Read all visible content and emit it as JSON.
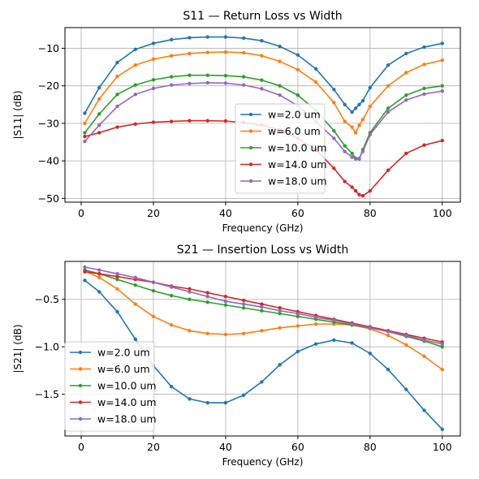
{
  "chart_data": [
    {
      "type": "line",
      "title": "S11 — Return Loss vs Width",
      "xlabel": "Frequency (GHz)",
      "ylabel": "|S11| (dB)",
      "xlim": [
        -4.5,
        105
      ],
      "ylim": [
        -51,
        -4.5
      ],
      "xticks": [
        0,
        20,
        40,
        60,
        80,
        100
      ],
      "xtick_labels": [
        "0",
        "20",
        "40",
        "60",
        "80",
        "100"
      ],
      "yticks": [
        -10,
        -20,
        -30,
        -40,
        -50
      ],
      "ytick_labels": [
        "−10",
        "−20",
        "−30",
        "−40",
        "−50"
      ],
      "grid": true,
      "legend_placement": "lower-center",
      "x": [
        1,
        5,
        10,
        15,
        20,
        25,
        30,
        35,
        40,
        45,
        50,
        55,
        60,
        65,
        70,
        73,
        75,
        76,
        77,
        78,
        80,
        85,
        90,
        95,
        100
      ],
      "series": [
        {
          "name": "w=2.0 um",
          "color": "#1f77b4",
          "values": [
            -27.3,
            -20.5,
            -13.8,
            -10.3,
            -8.7,
            -7.7,
            -7.2,
            -7.0,
            -7.0,
            -7.3,
            -8.0,
            -9.5,
            -11.8,
            -15.5,
            -21.0,
            -25.0,
            -27.0,
            -26.0,
            -25.0,
            -24.0,
            -20.5,
            -14.5,
            -11.4,
            -9.7,
            -8.7
          ]
        },
        {
          "name": "w=6.0 um",
          "color": "#ff7f0e",
          "values": [
            -30.0,
            -23.5,
            -17.5,
            -14.5,
            -12.9,
            -12.0,
            -11.4,
            -11.1,
            -11.0,
            -11.2,
            -12.0,
            -13.5,
            -15.7,
            -19.0,
            -24.5,
            -29.5,
            -31.0,
            -32.5,
            -30.5,
            -29.0,
            -25.5,
            -20.0,
            -16.5,
            -14.3,
            -13.2
          ]
        },
        {
          "name": "w=10.0 um",
          "color": "#2ca02c",
          "values": [
            -32.5,
            -27.5,
            -22.3,
            -19.8,
            -18.4,
            -17.6,
            -17.2,
            -17.2,
            -17.3,
            -17.6,
            -18.5,
            -20.0,
            -22.5,
            -26.5,
            -32.0,
            -36.0,
            -38.0,
            -39.3,
            -39.5,
            -37.0,
            -32.5,
            -26.0,
            -22.5,
            -20.7,
            -20.0
          ]
        },
        {
          "name": "w=14.0 um",
          "color": "#d62728",
          "values": [
            -33.5,
            -32.5,
            -31.0,
            -30.2,
            -29.7,
            -29.5,
            -29.3,
            -29.3,
            -29.4,
            -29.8,
            -30.5,
            -31.7,
            -34.0,
            -37.0,
            -42.0,
            -45.5,
            -47.0,
            -48.0,
            -49.0,
            -49.3,
            -48.0,
            -42.5,
            -38.0,
            -35.8,
            -34.6
          ]
        },
        {
          "name": "w=18.0 um",
          "color": "#9467bd",
          "values": [
            -34.8,
            -30.5,
            -25.5,
            -22.3,
            -20.7,
            -19.8,
            -19.4,
            -19.2,
            -19.3,
            -19.8,
            -20.8,
            -22.5,
            -25.3,
            -29.5,
            -34.0,
            -37.5,
            -39.0,
            -39.5,
            -39.3,
            -37.5,
            -33.0,
            -27.0,
            -23.8,
            -22.2,
            -21.4
          ]
        }
      ]
    },
    {
      "type": "line",
      "title": "S21 — Insertion Loss vs Width",
      "xlabel": "Frequency (GHz)",
      "ylabel": "|S21| (dB)",
      "xlim": [
        -4.5,
        105
      ],
      "ylim": [
        -1.94,
        -0.1
      ],
      "xticks": [
        0,
        20,
        40,
        60,
        80,
        100
      ],
      "xtick_labels": [
        "0",
        "20",
        "40",
        "60",
        "80",
        "100"
      ],
      "yticks": [
        -0.5,
        -1.0,
        -1.5
      ],
      "ytick_labels": [
        "−0.5",
        "−1.0",
        "−1.5"
      ],
      "grid": true,
      "legend_placement": "lower-left",
      "x": [
        1,
        5,
        10,
        15,
        20,
        25,
        30,
        35,
        40,
        45,
        50,
        55,
        60,
        65,
        70,
        75,
        80,
        85,
        90,
        95,
        100
      ],
      "series": [
        {
          "name": "w=2.0 um",
          "color": "#1f77b4",
          "values": [
            -0.3,
            -0.42,
            -0.63,
            -0.92,
            -1.2,
            -1.42,
            -1.55,
            -1.59,
            -1.59,
            -1.51,
            -1.37,
            -1.19,
            -1.05,
            -0.97,
            -0.93,
            -0.96,
            -1.07,
            -1.24,
            -1.45,
            -1.67,
            -1.87
          ]
        },
        {
          "name": "w=6.0 um",
          "color": "#ff7f0e",
          "values": [
            -0.2,
            -0.27,
            -0.39,
            -0.55,
            -0.68,
            -0.77,
            -0.83,
            -0.86,
            -0.87,
            -0.86,
            -0.83,
            -0.8,
            -0.78,
            -0.76,
            -0.76,
            -0.77,
            -0.81,
            -0.88,
            -0.98,
            -1.1,
            -1.24
          ]
        },
        {
          "name": "w=10.0 um",
          "color": "#2ca02c",
          "values": [
            -0.19,
            -0.23,
            -0.29,
            -0.35,
            -0.41,
            -0.46,
            -0.5,
            -0.53,
            -0.56,
            -0.59,
            -0.62,
            -0.65,
            -0.68,
            -0.71,
            -0.74,
            -0.77,
            -0.8,
            -0.84,
            -0.89,
            -0.94,
            -1.0
          ]
        },
        {
          "name": "w=14.0 um",
          "color": "#d62728",
          "values": [
            -0.21,
            -0.23,
            -0.26,
            -0.29,
            -0.32,
            -0.36,
            -0.39,
            -0.43,
            -0.47,
            -0.51,
            -0.55,
            -0.59,
            -0.63,
            -0.67,
            -0.71,
            -0.75,
            -0.79,
            -0.83,
            -0.87,
            -0.91,
            -0.95
          ]
        },
        {
          "name": "w=18.0 um",
          "color": "#9467bd",
          "values": [
            -0.16,
            -0.19,
            -0.23,
            -0.27,
            -0.32,
            -0.37,
            -0.42,
            -0.47,
            -0.52,
            -0.55,
            -0.58,
            -0.62,
            -0.65,
            -0.69,
            -0.72,
            -0.76,
            -0.8,
            -0.84,
            -0.88,
            -0.93,
            -0.97
          ]
        }
      ]
    }
  ]
}
